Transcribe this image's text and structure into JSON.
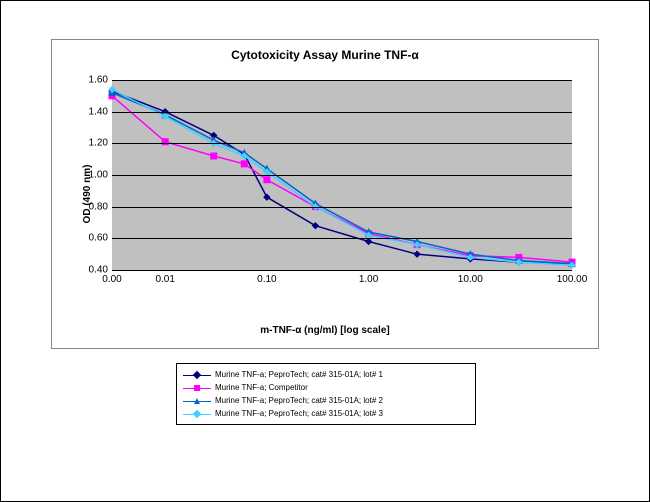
{
  "chart": {
    "type": "line",
    "title": "Cytotoxicity Assay Murine TNF-α",
    "xlabel": "m-TNF-α (ng/ml) [log scale]",
    "ylabel": "OD (490 nm)",
    "background_color": "#c0c0c0",
    "grid_color": "#000000",
    "grid": true,
    "xscale": "log",
    "xlim": [
      0.003,
      100
    ],
    "ylim": [
      0.4,
      1.6
    ],
    "yticks": [
      0.4,
      0.6,
      0.8,
      1.0,
      1.2,
      1.4,
      1.6
    ],
    "ytick_labels": [
      "0.40",
      "0.60",
      "0.80",
      "1.00",
      "1.20",
      "1.40",
      "1.60"
    ],
    "xticks": [
      0.003,
      0.01,
      0.1,
      1.0,
      10.0,
      100.0
    ],
    "xtick_labels": [
      "0.00",
      "0.01",
      "0.10",
      "1.00",
      "10.00",
      "100.00"
    ],
    "line_width": 1.5,
    "marker_size": 6,
    "title_fontsize": 12,
    "label_fontsize": 10,
    "tick_fontsize": 10,
    "series": [
      {
        "label": "Murine TNF-a; PeproTech; cat# 315-01A; lot# 1",
        "color": "#000080",
        "marker": "diamond",
        "x": [
          0.003,
          0.01,
          0.03,
          0.06,
          0.1,
          0.3,
          1.0,
          3.0,
          10.0,
          30.0,
          100.0
        ],
        "y": [
          1.53,
          1.4,
          1.25,
          1.13,
          0.86,
          0.68,
          0.58,
          0.5,
          0.47,
          0.45,
          0.44
        ]
      },
      {
        "label": "Murine TNF-a; Competitor",
        "color": "#ff00ff",
        "marker": "square",
        "x": [
          0.003,
          0.01,
          0.03,
          0.06,
          0.1,
          0.3,
          1.0,
          3.0,
          10.0,
          30.0,
          100.0
        ],
        "y": [
          1.5,
          1.21,
          1.12,
          1.07,
          0.97,
          0.8,
          0.63,
          0.56,
          0.49,
          0.48,
          0.45
        ]
      },
      {
        "label": "Murine TNF-a; PeproTech; cat# 315-01A; lot# 2",
        "color": "#0066cc",
        "marker": "triangle",
        "x": [
          0.003,
          0.01,
          0.03,
          0.06,
          0.1,
          0.3,
          1.0,
          3.0,
          10.0,
          30.0,
          100.0
        ],
        "y": [
          1.52,
          1.38,
          1.22,
          1.14,
          1.04,
          0.82,
          0.64,
          0.58,
          0.5,
          0.46,
          0.44
        ]
      },
      {
        "label": "Murine TNF-a; PeproTech; cat# 315-01A; lot# 3",
        "color": "#40d0ff",
        "marker": "diamond",
        "x": [
          0.003,
          0.01,
          0.03,
          0.06,
          0.1,
          0.3,
          1.0,
          3.0,
          10.0,
          30.0,
          100.0
        ],
        "y": [
          1.54,
          1.37,
          1.2,
          1.12,
          1.02,
          0.8,
          0.62,
          0.56,
          0.48,
          0.45,
          0.43
        ]
      }
    ]
  }
}
